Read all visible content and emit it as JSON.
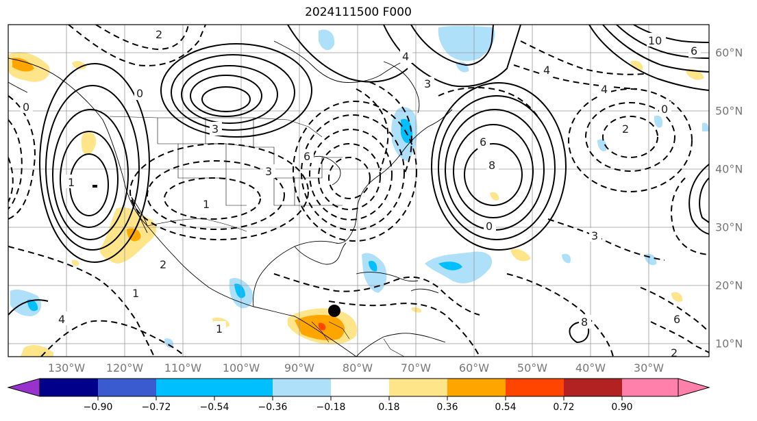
{
  "title": "2024111500 F000",
  "lon_labels": [
    "130°W",
    "120°W",
    "110°W",
    "100°W",
    "90°W",
    "80°W",
    "70°W",
    "60°W",
    "50°W",
    "40°W",
    "30°W"
  ],
  "lat_labels": [
    "60°N",
    "50°N",
    "40°N",
    "30°N",
    "20°N",
    "10°N"
  ],
  "colorbar": {
    "ticks": [
      "−0.90",
      "−0.72",
      "−0.54",
      "−0.36",
      "−0.18",
      "0.18",
      "0.36",
      "0.54",
      "0.72",
      "0.90"
    ],
    "colors": [
      "#9932cc",
      "#00008b",
      "#3a5bd0",
      "#00bfff",
      "#aee0fa",
      "#ffffff",
      "#ffe58a",
      "#ffa500",
      "#ff4500",
      "#b22222",
      "#ff80aa"
    ]
  },
  "contour_labels": [
    "10",
    "8",
    "6",
    "4",
    "3",
    "2",
    "1",
    "0",
    "4",
    "2",
    "6",
    "8",
    "6",
    "3",
    "1",
    "0",
    "1",
    "0",
    "3",
    "4",
    "4",
    "6",
    "0",
    "3",
    "2",
    "1",
    "2"
  ],
  "markers": [
    {
      "name": "storm-center",
      "lon": -84.5,
      "lat": 16.0
    }
  ]
}
